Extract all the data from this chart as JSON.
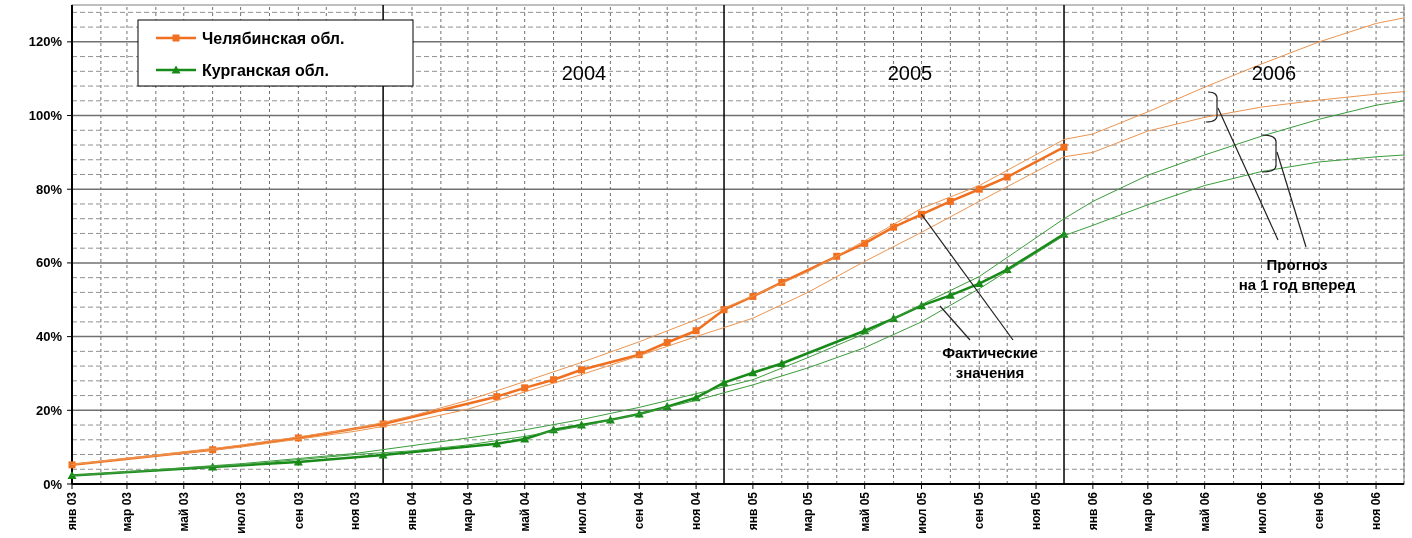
{
  "chart_data": {
    "type": "line",
    "xlim": [
      "2003-01",
      "2006-12"
    ],
    "ylim": [
      0,
      130
    ],
    "xticks": [
      {
        "value": "2003-01",
        "label": "янв 03"
      },
      {
        "value": "2003-02",
        "label": null
      },
      {
        "value": "2003-03",
        "label": "мар 03"
      },
      {
        "value": "2003-04",
        "label": null
      },
      {
        "value": "2003-05",
        "label": "май 03"
      },
      {
        "value": "2003-06",
        "label": null
      },
      {
        "value": "2003-07",
        "label": "июл 03"
      },
      {
        "value": "2003-08",
        "label": null
      },
      {
        "value": "2003-09",
        "label": "сен 03"
      },
      {
        "value": "2003-10",
        "label": null
      },
      {
        "value": "2003-11",
        "label": "ноя 03"
      },
      {
        "value": "2004-01",
        "label": "янв 04"
      },
      {
        "value": "2004-02",
        "label": null
      },
      {
        "value": "2004-03",
        "label": "мар 04"
      },
      {
        "value": "2004-04",
        "label": null
      },
      {
        "value": "2004-05",
        "label": "май 04"
      },
      {
        "value": "2004-06",
        "label": null
      },
      {
        "value": "2004-07",
        "label": "июл 04"
      },
      {
        "value": "2004-08",
        "label": null
      },
      {
        "value": "2004-09",
        "label": "сен 04"
      },
      {
        "value": "2004-10",
        "label": null
      },
      {
        "value": "2004-11",
        "label": "ноя 04"
      },
      {
        "value": "2005-01",
        "label": "янв 05"
      },
      {
        "value": "2005-02",
        "label": null
      },
      {
        "value": "2005-03",
        "label": "мар 05"
      },
      {
        "value": "2005-04",
        "label": null
      },
      {
        "value": "2005-05",
        "label": "май 05"
      },
      {
        "value": "2005-06",
        "label": null
      },
      {
        "value": "2005-07",
        "label": "июл 05"
      },
      {
        "value": "2005-08",
        "label": null
      },
      {
        "value": "2005-09",
        "label": "сен 05"
      },
      {
        "value": "2005-10",
        "label": null
      },
      {
        "value": "2005-11",
        "label": "ноя 05"
      },
      {
        "value": "2006-01",
        "label": "янв 06"
      },
      {
        "value": "2006-02",
        "label": null
      },
      {
        "value": "2006-03",
        "label": "мар 06"
      },
      {
        "value": "2006-04",
        "label": null
      },
      {
        "value": "2006-05",
        "label": "май 06"
      },
      {
        "value": "2006-06",
        "label": null
      },
      {
        "value": "2006-07",
        "label": "июл 06"
      },
      {
        "value": "2006-08",
        "label": null
      },
      {
        "value": "2006-09",
        "label": "сен 06"
      },
      {
        "value": "2006-10",
        "label": null
      },
      {
        "value": "2006-11",
        "label": "ноя 06"
      },
      {
        "value": "2006-12",
        "label": null
      }
    ],
    "yticks": [
      {
        "value": 0,
        "label": "0%"
      },
      {
        "value": 4,
        "label": null
      },
      {
        "value": 8,
        "label": null
      },
      {
        "value": 12,
        "label": null
      },
      {
        "value": 16,
        "label": null
      },
      {
        "value": 20,
        "label": "20%"
      },
      {
        "value": 24,
        "label": null
      },
      {
        "value": 28,
        "label": null
      },
      {
        "value": 32,
        "label": null
      },
      {
        "value": 36,
        "label": null
      },
      {
        "value": 40,
        "label": "40%"
      },
      {
        "value": 44,
        "label": null
      },
      {
        "value": 48,
        "label": null
      },
      {
        "value": 52,
        "label": null
      },
      {
        "value": 56,
        "label": null
      },
      {
        "value": 60,
        "label": "60%"
      },
      {
        "value": 64,
        "label": null
      },
      {
        "value": 68,
        "label": null
      },
      {
        "value": 72,
        "label": null
      },
      {
        "value": 76,
        "label": null
      },
      {
        "value": 80,
        "label": "80%"
      },
      {
        "value": 84,
        "label": null
      },
      {
        "value": 88,
        "label": null
      },
      {
        "value": 92,
        "label": null
      },
      {
        "value": 96,
        "label": null
      },
      {
        "value": 100,
        "label": "100%"
      },
      {
        "value": 104,
        "label": null
      },
      {
        "value": 108,
        "label": null
      },
      {
        "value": 112,
        "label": null
      },
      {
        "value": 116,
        "label": null
      },
      {
        "value": 120,
        "label": "120%"
      },
      {
        "value": 124,
        "label": null
      },
      {
        "value": 128,
        "label": null
      }
    ],
    "grid": true,
    "legend": "top left",
    "series": [
      {
        "name": "Челябинская обл.",
        "color": "#f07020",
        "marker": "square",
        "x": [
          "2003-01",
          "2003-06",
          "2003-09",
          "2003-12",
          "2004-04",
          "2004-05",
          "2004-06",
          "2004-07",
          "2004-09",
          "2004-10",
          "2004-11",
          "2004-12",
          "2005-01",
          "2005-02",
          "2005-04",
          "2005-05",
          "2005-06",
          "2005-07",
          "2005-08",
          "2005-09",
          "2005-10",
          "2005-12"
        ],
        "values": [
          5.2,
          9.3,
          12.5,
          16.3,
          23.7,
          26.1,
          28.3,
          31,
          35.1,
          38.4,
          41.6,
          47.3,
          50.9,
          54.7,
          61.8,
          65.3,
          69.7,
          73.2,
          76.7,
          80,
          83.3,
          91.4
        ]
      },
      {
        "name": "Курганская обл.",
        "color": "#188a18",
        "marker": "triangle",
        "x": [
          "2003-01",
          "2003-06",
          "2003-09",
          "2003-12",
          "2004-04",
          "2004-05",
          "2004-06",
          "2004-07",
          "2004-08",
          "2004-09",
          "2004-10",
          "2004-11",
          "2004-12",
          "2005-01",
          "2005-02",
          "2005-05",
          "2005-06",
          "2005-07",
          "2005-08",
          "2005-09",
          "2005-10",
          "2005-12"
        ],
        "values": [
          2.3,
          4.6,
          6,
          7.9,
          10.9,
          12.2,
          14.7,
          16,
          17.4,
          19,
          21,
          23.4,
          27.5,
          30.2,
          32.7,
          41.6,
          44.9,
          48.4,
          51.2,
          54.4,
          58.2,
          67.8
        ]
      },
      {
        "color": "#ec9450",
        "marker": "none",
        "x": [
          "2003-01",
          "2003-07",
          "2003-11",
          "2004-01",
          "2004-03",
          "2004-05",
          "2004-07",
          "2004-09",
          "2004-11",
          "2005-01",
          "2005-03",
          "2005-05",
          "2005-07",
          "2005-09",
          "2005-12",
          "2006-01",
          "2006-03",
          "2006-05",
          "2006-07",
          "2006-09",
          "2006-11",
          "2006-12"
        ],
        "values": [
          5.3,
          10.5,
          15,
          18.5,
          22.7,
          27.8,
          33,
          38.6,
          44.6,
          51,
          57.6,
          66,
          74.8,
          81,
          93.5,
          95,
          101,
          107.7,
          114,
          120,
          125,
          126.5
        ]
      },
      {
        "color": "#ec9450",
        "marker": "none",
        "x": [
          "2003-01",
          "2003-07",
          "2003-11",
          "2004-01",
          "2004-03",
          "2004-05",
          "2004-07",
          "2004-09",
          "2004-11",
          "2005-01",
          "2005-03",
          "2005-05",
          "2005-07",
          "2005-09",
          "2005-12",
          "2006-01",
          "2006-03",
          "2006-05",
          "2006-07",
          "2006-09",
          "2006-11",
          "2006-12"
        ],
        "values": [
          5.3,
          10,
          14.3,
          17,
          20.3,
          25,
          29.7,
          34.8,
          40,
          45,
          52,
          60.4,
          68.3,
          76.7,
          88.8,
          90,
          95.8,
          99.5,
          102.3,
          104.2,
          105.8,
          106.5
        ]
      },
      {
        "color": "#3c9c3c",
        "marker": "none",
        "x": [
          "2003-01",
          "2003-07",
          "2003-11",
          "2004-01",
          "2004-03",
          "2004-05",
          "2004-07",
          "2004-09",
          "2004-11",
          "2005-01",
          "2005-03",
          "2005-05",
          "2005-07",
          "2005-09",
          "2005-12",
          "2006-01",
          "2006-03",
          "2006-05",
          "2006-07",
          "2006-09",
          "2006-11",
          "2006-12"
        ],
        "values": [
          2.3,
          5.5,
          8.3,
          10.4,
          12.5,
          14.7,
          17.5,
          20.8,
          24.5,
          28.3,
          34.3,
          40.8,
          48.7,
          56.3,
          72,
          76.7,
          83.8,
          89.3,
          94.4,
          99,
          102.8,
          104
        ]
      },
      {
        "color": "#3c9c3c",
        "marker": "none",
        "x": [
          "2003-01",
          "2003-07",
          "2003-11",
          "2004-01",
          "2004-03",
          "2004-05",
          "2004-07",
          "2004-09",
          "2004-11",
          "2005-01",
          "2005-03",
          "2005-05",
          "2005-07",
          "2005-09",
          "2005-12",
          "2006-01",
          "2006-03",
          "2006-05",
          "2006-07",
          "2006-09",
          "2006-11",
          "2006-12"
        ],
        "values": [
          2.3,
          5.2,
          8,
          9,
          10.6,
          12.9,
          15.7,
          19,
          22.7,
          26.9,
          31.5,
          37,
          44,
          53,
          67.4,
          70.2,
          75.8,
          81,
          84.8,
          87.4,
          88.8,
          89.3
        ]
      }
    ],
    "ref_lines": [
      {
        "axis": "x",
        "value": "2003-12",
        "color": "#000000"
      },
      {
        "axis": "x",
        "value": "2004-12",
        "color": "#000000"
      },
      {
        "axis": "x",
        "value": "2005-12",
        "color": "#000000"
      }
    ],
    "annotations": [
      "2004",
      "2005",
      "2006",
      {
        "text": "Фактические\nзначения",
        "x": "2005-07",
        "y": 73.2
      },
      "Прогноз\nна 1 год вперед"
    ]
  }
}
